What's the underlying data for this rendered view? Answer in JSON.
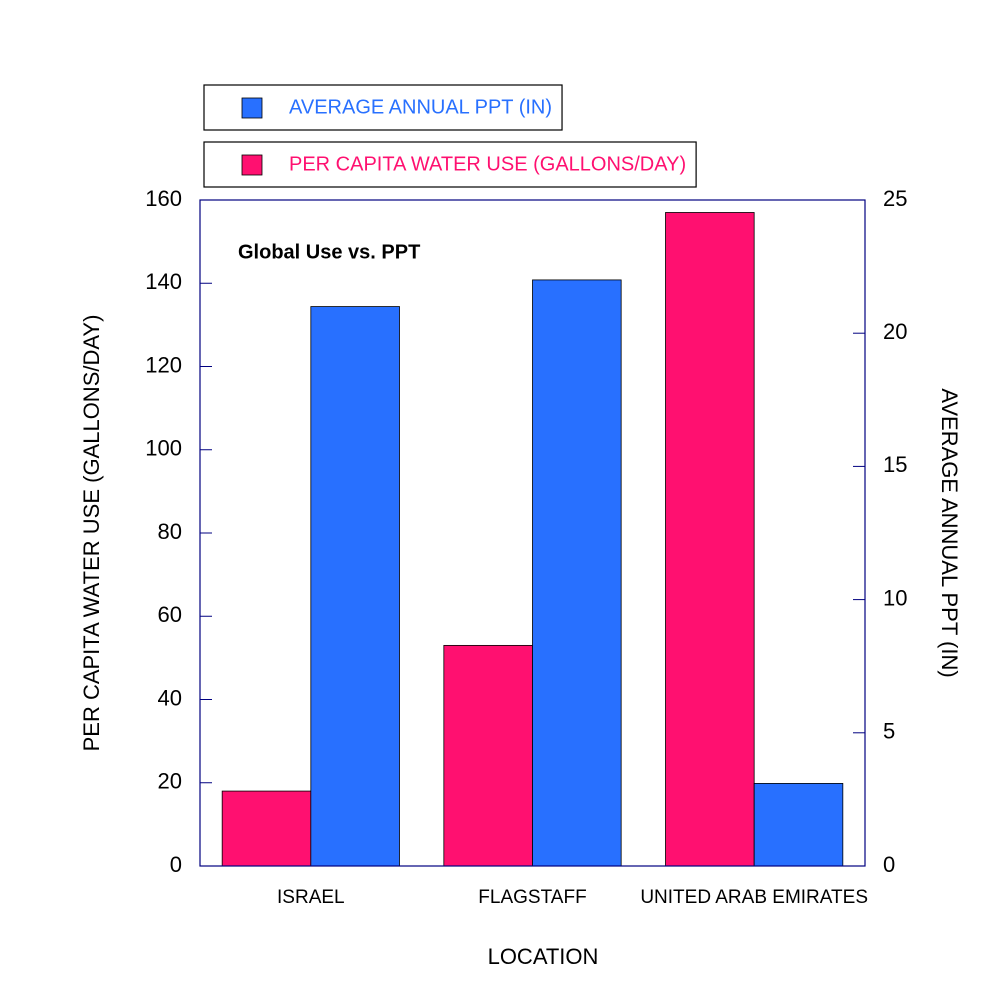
{
  "chart_data": {
    "type": "bar",
    "title": "Global Use vs. PPT",
    "xlabel": "LOCATION",
    "ylabel": "PER CAPITA WATER USE (GALLONS/DAY)",
    "y2label": "AVERAGE ANNUAL PPT (IN)",
    "categories": [
      "ISRAEL",
      "FLAGSTAFF",
      "UNITED ARAB EMIRATES"
    ],
    "series": [
      {
        "name": "PER CAPITA WATER USE (GALLONS/DAY)",
        "color": "#ff1070",
        "values": [
          18,
          53,
          157
        ]
      },
      {
        "name": "AVERAGE ANNUAL PPT (IN)",
        "color": "#2870ff",
        "axis": "y2",
        "values": [
          21,
          22,
          3.1
        ]
      }
    ],
    "ylim": [
      0,
      160
    ],
    "yticks": [
      0,
      20,
      40,
      60,
      80,
      100,
      120,
      140,
      160
    ],
    "y2lim": [
      0,
      25
    ],
    "y2ticks": [
      0,
      5,
      10,
      15,
      20,
      25
    ]
  }
}
